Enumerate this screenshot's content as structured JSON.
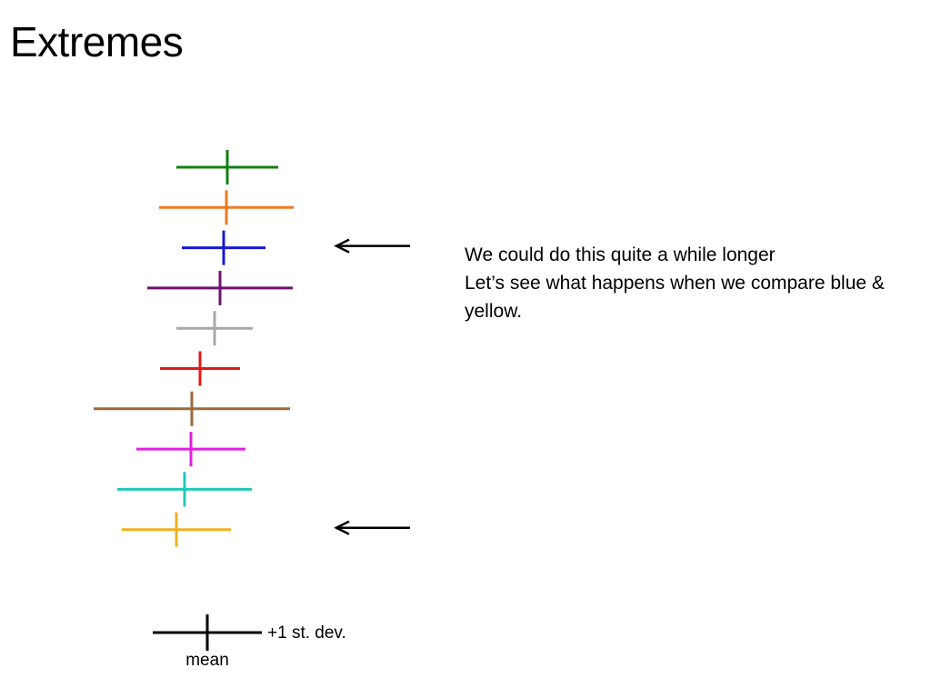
{
  "slide": {
    "title": "Extremes"
  },
  "notes": {
    "line1": "We could do this quite a while longer",
    "line2": "Let’s see what happens when we compare blue & yellow."
  },
  "legend": {
    "mean_label": "mean",
    "sd_label": "+1 st. dev."
  },
  "crosses": [
    {
      "color": "green",
      "hex": "#108010",
      "mean": 250,
      "sd": 56
    },
    {
      "color": "orange",
      "hex": "#f07820",
      "mean": 249,
      "sd": 74
    },
    {
      "color": "blue",
      "hex": "#1818d8",
      "mean": 246,
      "sd": 46,
      "highlighted": true
    },
    {
      "color": "purple",
      "hex": "#701070",
      "mean": 242,
      "sd": 80
    },
    {
      "color": "gray",
      "hex": "#a8a8a8",
      "mean": 236,
      "sd": 42
    },
    {
      "color": "red",
      "hex": "#e01818",
      "mean": 220,
      "sd": 44
    },
    {
      "color": "brown",
      "hex": "#9a6a3a",
      "mean": 211,
      "sd": 108
    },
    {
      "color": "magenta",
      "hex": "#e020e0",
      "mean": 210,
      "sd": 60
    },
    {
      "color": "cyan",
      "hex": "#20c8b8",
      "mean": 203,
      "sd": 74
    },
    {
      "color": "yellow",
      "hex": "#f0b020",
      "mean": 194,
      "sd": 60,
      "highlighted": true
    }
  ]
}
